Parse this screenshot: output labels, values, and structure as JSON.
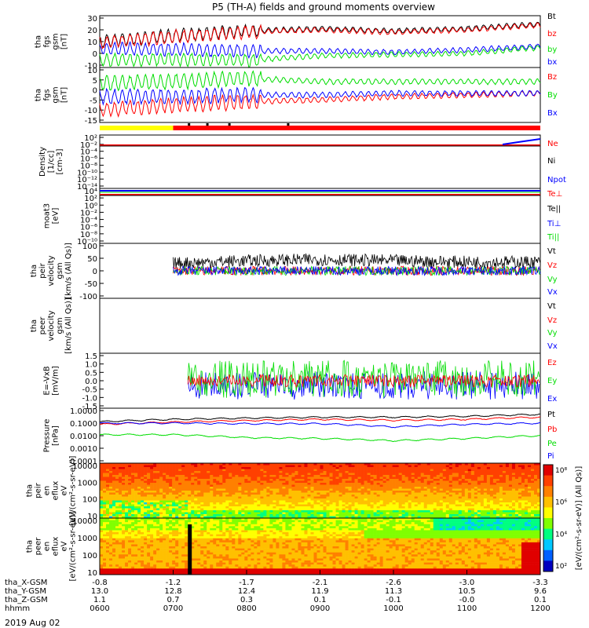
{
  "title": "P5 (TH-A) fields and ground moments overview",
  "date": "2019 Aug 02",
  "colorbar_label": "[eV/(cm²-s-sr-eV)] (All Qs)]",
  "colors": {
    "black": "#000000",
    "red": "#ff0000",
    "green": "#00dd00",
    "blue": "#0000ff",
    "yellow": "#ffff00"
  },
  "x_axis": {
    "time_ticks": [
      "0600",
      "0700",
      "0800",
      "0900",
      "1000",
      "1100",
      "1200"
    ],
    "rows": [
      {
        "label": "tha_X-GSM",
        "values": [
          "-0.8",
          "-1.2",
          "-1.7",
          "-2.1",
          "-2.6",
          "-3.0",
          "-3.3"
        ]
      },
      {
        "label": "tha_Y-GSM",
        "values": [
          "13.0",
          "12.8",
          "12.4",
          "11.9",
          "11.3",
          "10.5",
          "9.6"
        ]
      },
      {
        "label": "tha_Z-GSM",
        "values": [
          "1.1",
          "0.7",
          "0.3",
          "0.1",
          "-0.1",
          "-0.0",
          "0.1"
        ]
      },
      {
        "label": "hhmm",
        "values": [
          "0600",
          "0700",
          "0800",
          "0900",
          "1000",
          "1100",
          "1200"
        ]
      }
    ]
  },
  "chart_data": [
    {
      "type": "line",
      "ylabel": [
        "tha",
        "fgs",
        "gsm",
        "[nT]"
      ],
      "yticks": [
        "30",
        "20",
        "10",
        "0",
        "-10"
      ],
      "ylim": [
        -10,
        30
      ],
      "legend": [
        {
          "name": "Bt",
          "color": "black"
        },
        {
          "name": "bz",
          "color": "red"
        },
        {
          "name": "by",
          "color": "green"
        },
        {
          "name": "bx",
          "color": "blue"
        }
      ],
      "series": [
        {
          "name": "Bt",
          "x": [
            "0600",
            "0700",
            "0800",
            "0900",
            "1000",
            "1100",
            "1200"
          ],
          "values": [
            10,
            15,
            19,
            21,
            19,
            21,
            25
          ]
        },
        {
          "name": "bz",
          "x": [
            "0600",
            "0700",
            "0800",
            "0900",
            "1000",
            "1100",
            "1200"
          ],
          "values": [
            9,
            14,
            18,
            20,
            18,
            20,
            24
          ]
        },
        {
          "name": "by",
          "x": [
            "0600",
            "0700",
            "0800",
            "0900",
            "1000",
            "1100",
            "1200"
          ],
          "values": [
            -6,
            -5,
            -6,
            -2,
            -1,
            0,
            5
          ]
        },
        {
          "name": "bx",
          "x": [
            "0600",
            "0700",
            "0800",
            "0900",
            "1000",
            "1100",
            "1200"
          ],
          "values": [
            4,
            3,
            2,
            2,
            1,
            3,
            6
          ]
        }
      ]
    },
    {
      "type": "line",
      "ylabel": [
        "tha",
        "fgs",
        "gsm",
        "[nT]"
      ],
      "yticks": [
        "10",
        "5",
        "0",
        "-5",
        "-10",
        "-15"
      ],
      "ylim": [
        -18,
        12
      ],
      "legend": [
        {
          "name": "Bz",
          "color": "red"
        },
        {
          "name": "By",
          "color": "green"
        },
        {
          "name": "Bx",
          "color": "blue"
        }
      ],
      "series": [
        {
          "name": "Bz",
          "x": [
            "0600",
            "0700",
            "0800",
            "0900",
            "1000",
            "1100",
            "1200"
          ],
          "values": [
            -12,
            -9,
            -7,
            -6,
            -4,
            -3,
            -2
          ]
        },
        {
          "name": "By",
          "x": [
            "0600",
            "0700",
            "0800",
            "0900",
            "1000",
            "1100",
            "1200"
          ],
          "values": [
            4,
            5,
            7,
            5,
            5,
            5,
            5
          ]
        },
        {
          "name": "Bx",
          "x": [
            "0600",
            "0700",
            "0800",
            "0900",
            "1000",
            "1100",
            "1200"
          ],
          "values": [
            -4,
            -4,
            -3,
            -3,
            -2,
            -2,
            -2
          ]
        }
      ]
    },
    {
      "type": "line",
      "ylabel": [
        "Density",
        "[1/cc]",
        "[cm-3]"
      ],
      "yticks": [
        "10²",
        "10⁻²",
        "10⁻⁴",
        "10⁻⁶",
        "10⁻⁸",
        "10⁻¹⁰",
        "10⁻¹²",
        "10⁻¹⁴"
      ],
      "yscale": "log",
      "legend": [
        {
          "name": "Ne",
          "color": "red"
        },
        {
          "name": "Ni",
          "color": "black"
        },
        {
          "name": "Npot",
          "color": "blue"
        }
      ]
    },
    {
      "type": "line",
      "ylabel": [
        "moat3",
        "[eV]"
      ],
      "yticks": [
        "10⁴",
        "10²",
        "10⁰",
        "10⁻²",
        "10⁻⁴",
        "10⁻⁶",
        "10⁻⁸",
        "10⁻¹⁰"
      ],
      "yscale": "log",
      "legend": [
        {
          "name": "Te⊥",
          "color": "red"
        },
        {
          "name": "Te||",
          "color": "black"
        },
        {
          "name": "Ti⊥",
          "color": "blue"
        },
        {
          "name": "Ti||",
          "color": "green"
        }
      ]
    },
    {
      "type": "line",
      "ylabel": [
        "tha",
        "peir",
        "velocity",
        "gsm",
        "[km/s (All Qs)]"
      ],
      "yticks": [
        "100",
        "50",
        "0",
        "-50",
        "-100"
      ],
      "ylim": [
        -100,
        100
      ],
      "legend": [
        {
          "name": "Vt",
          "color": "black"
        },
        {
          "name": "Vz",
          "color": "red"
        },
        {
          "name": "Vy",
          "color": "green"
        },
        {
          "name": "Vx",
          "color": "blue"
        }
      ],
      "series": [
        {
          "name": "Vt",
          "x": [
            "0700",
            "0800",
            "0900",
            "1000",
            "1100",
            "1200"
          ],
          "values": [
            30,
            40,
            45,
            40,
            35,
            35
          ]
        },
        {
          "name": "Vz",
          "x": [
            "0700",
            "0800",
            "0900",
            "1000",
            "1100",
            "1200"
          ],
          "values": [
            0,
            0,
            0,
            0,
            0,
            0
          ]
        },
        {
          "name": "Vy",
          "x": [
            "0700",
            "0800",
            "0900",
            "1000",
            "1100",
            "1200"
          ],
          "values": [
            0,
            0,
            0,
            0,
            0,
            0
          ]
        },
        {
          "name": "Vx",
          "x": [
            "0700",
            "0800",
            "0900",
            "1000",
            "1100",
            "1200"
          ],
          "values": [
            0,
            0,
            0,
            0,
            0,
            0
          ]
        }
      ]
    },
    {
      "type": "line",
      "ylabel": [
        "tha",
        "peer",
        "velocity",
        "gsm",
        "[km/s (All Qs)]"
      ],
      "legend": [
        {
          "name": "Vt",
          "color": "black"
        },
        {
          "name": "Vz",
          "color": "red"
        },
        {
          "name": "Vy",
          "color": "green"
        },
        {
          "name": "Vx",
          "color": "blue"
        }
      ]
    },
    {
      "type": "line",
      "ylabel": [
        "E=-VxB",
        "[mV/m]"
      ],
      "yticks": [
        "1.5",
        "1.0",
        "0.5",
        "0.0",
        "-0.5",
        "-1.0",
        "-1.5"
      ],
      "ylim": [
        -1.5,
        1.5
      ],
      "legend": [
        {
          "name": "Ez",
          "color": "red"
        },
        {
          "name": "Ey",
          "color": "green"
        },
        {
          "name": "Ex",
          "color": "blue"
        }
      ]
    },
    {
      "type": "line",
      "ylabel": [
        "Pressure",
        "[nPa]"
      ],
      "yticks": [
        "1.0000",
        "0.1000",
        "0.0100",
        "0.0010",
        "0.0001"
      ],
      "yscale": "log",
      "ylim": [
        0.0001,
        1.0
      ],
      "legend": [
        {
          "name": "Pt",
          "color": "black"
        },
        {
          "name": "Pb",
          "color": "red"
        },
        {
          "name": "Pe",
          "color": "green"
        },
        {
          "name": "Pi",
          "color": "blue"
        }
      ],
      "series": [
        {
          "name": "Pt",
          "x": [
            "0600",
            "0700",
            "0800",
            "0900",
            "1000",
            "1100",
            "1200"
          ],
          "values": [
            0.13,
            0.2,
            0.25,
            0.3,
            0.3,
            0.35,
            0.5
          ]
        },
        {
          "name": "Pb",
          "x": [
            "0600",
            "0700",
            "0800",
            "0900",
            "1000",
            "1100",
            "1200"
          ],
          "values": [
            0.08,
            0.12,
            0.16,
            0.2,
            0.17,
            0.2,
            0.3
          ]
        },
        {
          "name": "Pe",
          "x": [
            "0600",
            "0700",
            "0800",
            "0900",
            "1000",
            "1100",
            "1200"
          ],
          "values": [
            0.012,
            0.012,
            0.007,
            0.006,
            0.004,
            0.006,
            0.01
          ]
        },
        {
          "name": "Pi",
          "x": [
            "0600",
            "0700",
            "0800",
            "0900",
            "1000",
            "1100",
            "1200"
          ],
          "values": [
            0.1,
            0.1,
            0.09,
            0.09,
            0.05,
            0.08,
            0.1
          ]
        }
      ]
    },
    {
      "type": "heatmap",
      "ylabel": [
        "tha",
        "peir",
        "en",
        "eflux",
        "eV",
        "[eV/(cm²-s-sr-eV)]"
      ],
      "yticks": [
        "10000",
        "1000",
        "100",
        "10"
      ],
      "yscale": "log",
      "colorbar_ticks": [
        "10⁸",
        "10⁶",
        "10⁴",
        "10²"
      ]
    },
    {
      "type": "heatmap",
      "ylabel": [
        "tha",
        "peer",
        "en",
        "eflux",
        "eV",
        "[eV/(cm²-s-sr-eV)]"
      ],
      "yticks": [
        "10000",
        "1000",
        "100",
        "10"
      ],
      "yscale": "log",
      "colorbar_ticks": [
        "10⁸",
        "10⁶",
        "10⁴",
        "10²"
      ]
    }
  ]
}
